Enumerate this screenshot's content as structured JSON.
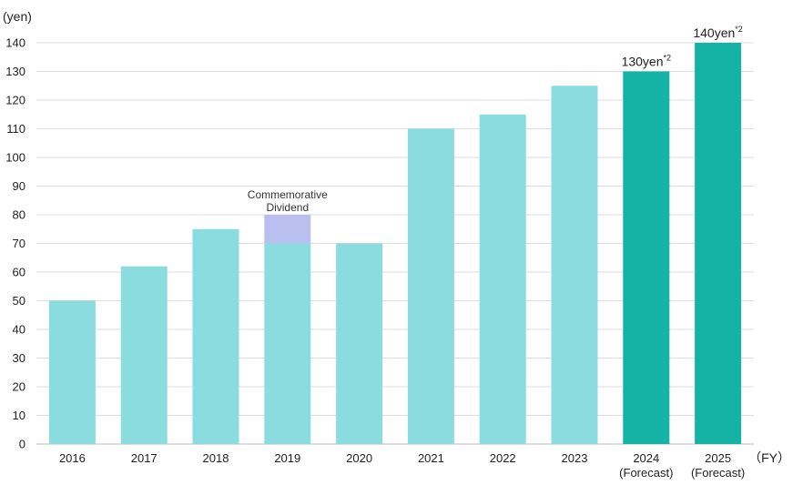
{
  "chart_data": {
    "type": "bar",
    "y_unit_label": "(yen)",
    "x_unit_label": "（FY）",
    "ylim": [
      0,
      140
    ],
    "yticks": [
      0,
      10,
      20,
      30,
      40,
      50,
      60,
      70,
      80,
      90,
      100,
      110,
      120,
      130,
      140
    ],
    "grid": true,
    "categories": [
      {
        "line1": "2016",
        "line2": ""
      },
      {
        "line1": "2017",
        "line2": ""
      },
      {
        "line1": "2018",
        "line2": ""
      },
      {
        "line1": "2019",
        "line2": ""
      },
      {
        "line1": "2020",
        "line2": ""
      },
      {
        "line1": "2021",
        "line2": ""
      },
      {
        "line1": "2022",
        "line2": ""
      },
      {
        "line1": "2023",
        "line2": ""
      },
      {
        "line1": "2024",
        "line2": "(Forecast)"
      },
      {
        "line1": "2025",
        "line2": "(Forecast)"
      }
    ],
    "series": [
      {
        "key": "ordinary",
        "values": [
          50,
          62,
          75,
          70,
          70,
          110,
          115,
          125,
          130,
          140
        ]
      },
      {
        "key": "commemorative",
        "values": [
          0,
          0,
          0,
          10,
          0,
          0,
          0,
          0,
          0,
          0
        ]
      }
    ],
    "forecast_flags": [
      false,
      false,
      false,
      false,
      false,
      false,
      false,
      false,
      true,
      true
    ],
    "annotations": [
      {
        "category_index": 3,
        "lines": [
          "Commemorative",
          "Dividend"
        ]
      }
    ],
    "data_labels": [
      {
        "category_index": 8,
        "text": "130yen",
        "sup": "*2"
      },
      {
        "category_index": 9,
        "text": "140yen",
        "sup": "*2"
      }
    ],
    "colors": {
      "actual": "#8adcdf",
      "forecast": "#14b3a6",
      "commemorative": "#b9c0ef",
      "grid": "#dddddd",
      "axis": "#bbbbbb"
    }
  }
}
